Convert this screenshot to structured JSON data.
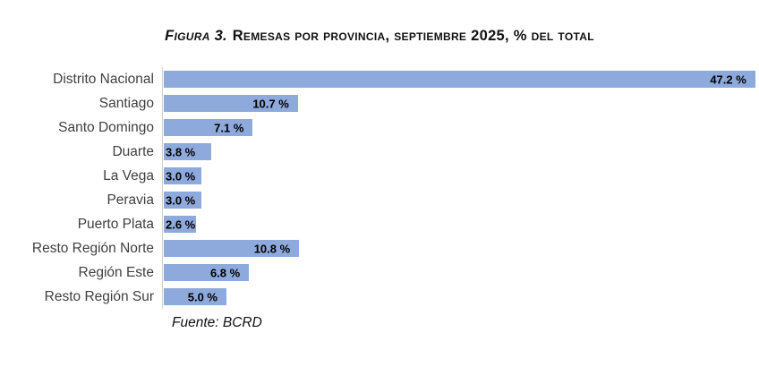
{
  "title": {
    "prefix": "Figura 3.",
    "rest": "Remesas por provincia, septiembre 2025, % del total"
  },
  "source": "Fuente: BCRD",
  "chart_data": {
    "type": "bar",
    "orientation": "horizontal",
    "title": "Figura 3. Remesas por provincia, septiembre 2025, % del total",
    "source_note": "Fuente: BCRD",
    "categories": [
      "Distrito Nacional",
      "Santiago",
      "Santo Domingo",
      "Duarte",
      "La Vega",
      "Peravia",
      "Puerto Plata",
      "Resto Región Norte",
      "Región Este",
      "Resto Región Sur"
    ],
    "values": [
      47.2,
      10.7,
      7.1,
      3.8,
      3.0,
      3.0,
      2.6,
      10.8,
      6.8,
      5.0
    ],
    "labels": [
      "47.2 %",
      "10.7 %",
      "7.1 %",
      "3.8 %",
      "3.0 %",
      "3.0 %",
      "2.6 %",
      "10.8 %",
      "6.8 %",
      "5.0 %"
    ],
    "unit": "% del total",
    "xlim": [
      0,
      47.2
    ],
    "grid": false,
    "legend": false,
    "value_label_position": "inside-end",
    "bar_color": "#8EA9DB",
    "axis_line_color": "#D0CECE",
    "value_label_color": "#000000",
    "category_label_color": "#3F3F3F"
  }
}
